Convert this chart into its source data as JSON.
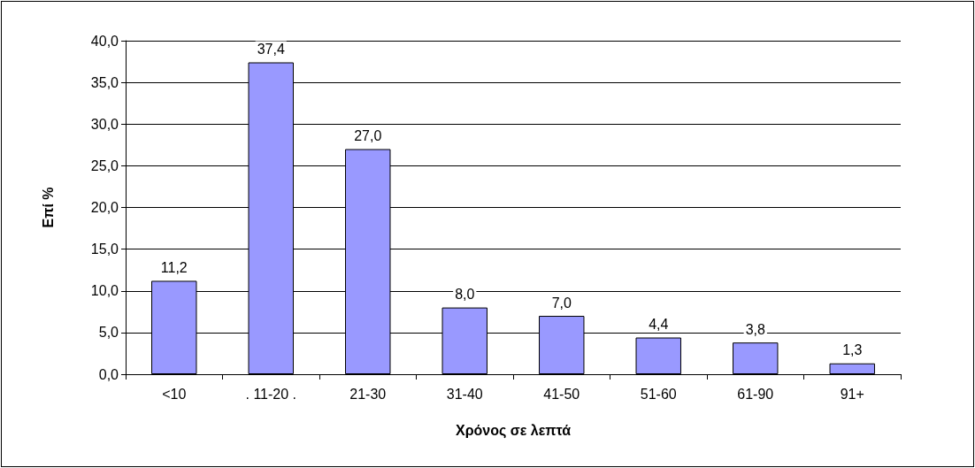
{
  "chart_data": {
    "type": "bar",
    "xlabel": "Χρόνος σε λεπτά",
    "ylabel": "Επί %",
    "categories": [
      "<10",
      ". 11-20 .",
      "21-30",
      "31-40",
      "41-50",
      "51-60",
      "61-90",
      "91+"
    ],
    "values": [
      11.2,
      37.4,
      27.0,
      8.0,
      7.0,
      4.4,
      3.8,
      1.3
    ],
    "value_labels": [
      "11,2",
      "37,4",
      "27,0",
      "8,0",
      "7,0",
      "4,4",
      "3,8",
      "1,3"
    ],
    "color": "#9999ff",
    "ylim": [
      0,
      40
    ],
    "yticks": [
      {
        "value": 0,
        "label": "0,0"
      },
      {
        "value": 5,
        "label": "5,0"
      },
      {
        "value": 10,
        "label": "10,0"
      },
      {
        "value": 15,
        "label": "15,0"
      },
      {
        "value": 20,
        "label": "20,0"
      },
      {
        "value": 25,
        "label": "25,0"
      },
      {
        "value": 30,
        "label": "30,0"
      },
      {
        "value": 35,
        "label": "35,0"
      },
      {
        "value": 40,
        "label": "40,0"
      }
    ],
    "grid": "y"
  }
}
